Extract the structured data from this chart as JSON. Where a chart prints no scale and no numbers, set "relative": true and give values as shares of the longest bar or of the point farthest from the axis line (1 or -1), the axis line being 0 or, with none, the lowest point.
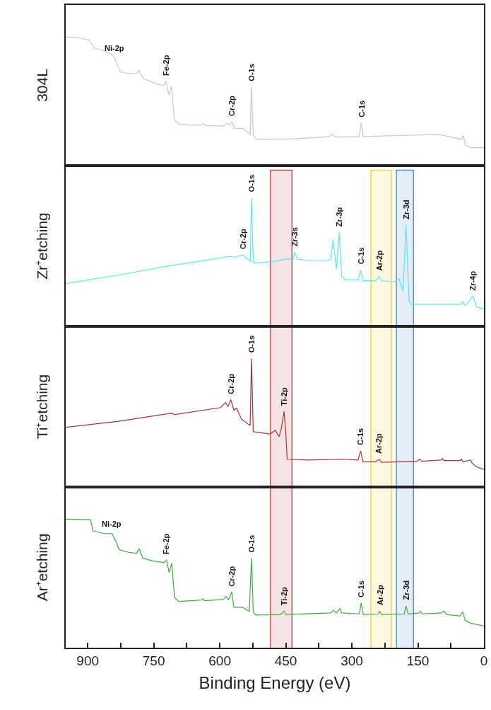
{
  "chart_data": [
    {
      "type": "line",
      "relative": true,
      "ylabel": "304L",
      "xlim": [
        950,
        0
      ],
      "tick_labels": false,
      "series": [
        {
          "color": "#c8c8c8",
          "x": [
            950,
            925,
            897,
            885,
            863,
            848,
            839,
            826,
            808,
            789,
            783,
            774,
            758,
            743,
            727,
            722,
            716,
            710,
            703,
            693,
            666,
            641,
            638,
            632,
            592,
            582,
            578,
            573,
            567,
            548,
            536,
            531,
            528,
            524,
            518,
            431,
            351,
            345,
            338,
            283,
            279,
            274,
            104,
            79,
            51,
            47,
            42,
            30,
            0
          ],
          "values": [
            1.0,
            0.996,
            0.978,
            0.914,
            0.892,
            0.871,
            0.839,
            0.731,
            0.716,
            0.72,
            0.738,
            0.677,
            0.656,
            0.634,
            0.624,
            0.656,
            0.548,
            0.617,
            0.355,
            0.323,
            0.316,
            0.316,
            0.329,
            0.312,
            0.308,
            0.333,
            0.312,
            0.344,
            0.29,
            0.29,
            0.258,
            0.237,
            0.613,
            0.247,
            0.204,
            0.209,
            0.226,
            0.247,
            0.222,
            0.226,
            0.333,
            0.226,
            0.243,
            0.226,
            0.204,
            0.237,
            0.161,
            0.14,
            0.14
          ]
        }
      ],
      "annotations": [
        {
          "text": "Ni-2p",
          "x": 839,
          "y": 0.839
        },
        {
          "text": "Fe-2p",
          "x": 722,
          "y": 0.656
        },
        {
          "text": "Cr-2p",
          "x": 573,
          "y": 0.344
        },
        {
          "text": "O-1s",
          "x": 528,
          "y": 0.613
        },
        {
          "text": "C-1s",
          "x": 279,
          "y": 0.333
        }
      ]
    },
    {
      "type": "line",
      "relative": true,
      "ylabel": "Zr⁺etching",
      "xlim": [
        950,
        0
      ],
      "tick_labels": false,
      "series": [
        {
          "color": "#5ee6ea",
          "x": [
            950,
            833,
            709,
            616,
            576,
            567,
            548,
            536,
            531,
            528,
            524,
            511,
            474,
            444,
            434,
            430,
            424,
            400,
            354,
            348,
            343,
            335,
            329,
            323,
            314,
            286,
            280,
            275,
            246,
            238,
            233,
            203,
            193,
            184,
            177,
            170,
            166,
            54,
            48,
            42,
            25,
            17,
            0
          ],
          "values": [
            0.332,
            0.398,
            0.474,
            0.522,
            0.545,
            0.537,
            0.556,
            0.522,
            0.503,
            1.0,
            0.493,
            0.493,
            0.507,
            0.526,
            0.522,
            0.575,
            0.522,
            0.512,
            0.512,
            0.522,
            0.674,
            0.446,
            0.731,
            0.389,
            0.361,
            0.361,
            0.436,
            0.355,
            0.355,
            0.389,
            0.355,
            0.347,
            0.37,
            0.275,
            0.787,
            0.199,
            0.171,
            0.171,
            0.19,
            0.161,
            0.237,
            0.152,
            0.133
          ]
        }
      ],
      "bands": [
        {
          "axis": "x",
          "from": 484,
          "to": 437,
          "color": "#b01c22"
        },
        {
          "axis": "x",
          "from": 256,
          "to": 211,
          "color": "#f2c318"
        },
        {
          "axis": "x",
          "from": 198,
          "to": 161,
          "color": "#1f70c1"
        }
      ],
      "annotations": [
        {
          "text": "Cr-2p",
          "x": 548,
          "y": 0.556
        },
        {
          "text": "O-1s",
          "x": 528,
          "y": 1.0
        },
        {
          "text": "Zr-3s",
          "x": 430,
          "y": 0.575
        },
        {
          "text": "Zr-3p",
          "x": 329,
          "y": 0.731
        },
        {
          "text": "C-1s",
          "x": 280,
          "y": 0.436
        },
        {
          "text": "Ar-2p",
          "x": 238,
          "y": 0.389
        },
        {
          "text": "Zr-3d",
          "x": 177,
          "y": 0.787
        },
        {
          "text": "Zr-4p",
          "x": 25,
          "y": 0.237
        }
      ]
    },
    {
      "type": "line",
      "relative": true,
      "ylabel": "Ti⁺etching",
      "xlim": [
        950,
        0
      ],
      "tick_labels": false,
      "series": [
        {
          "color": "#9e3636",
          "x": [
            950,
            833,
            709,
            703,
            598,
            587,
            581,
            575,
            568,
            562,
            551,
            536,
            531,
            528,
            524,
            511,
            486,
            474,
            465,
            460,
            454,
            450,
            447,
            400,
            320,
            286,
            280,
            275,
            246,
            238,
            233,
            153,
            146,
            141,
            98,
            94,
            91,
            54,
            51,
            48,
            30,
            27,
            17,
            0
          ],
          "values": [
            0.465,
            0.51,
            0.575,
            0.563,
            0.618,
            0.657,
            0.627,
            0.68,
            0.598,
            0.614,
            0.529,
            0.49,
            0.48,
            1.0,
            0.431,
            0.425,
            0.412,
            0.441,
            0.392,
            0.461,
            0.588,
            0.422,
            0.216,
            0.21,
            0.216,
            0.21,
            0.28,
            0.196,
            0.196,
            0.216,
            0.192,
            0.2,
            0.216,
            0.2,
            0.21,
            0.222,
            0.206,
            0.206,
            0.22,
            0.196,
            0.21,
            0.186,
            0.157,
            0.137
          ]
        }
      ],
      "bands": [
        {
          "axis": "x",
          "from": 484,
          "to": 437,
          "color": "#b01c22"
        },
        {
          "axis": "x",
          "from": 256,
          "to": 211,
          "color": "#f2c318"
        },
        {
          "axis": "x",
          "from": 198,
          "to": 161,
          "color": "#1f70c1"
        }
      ],
      "annotations": [
        {
          "text": "Cr-2p",
          "x": 575,
          "y": 0.68
        },
        {
          "text": "O-1s",
          "x": 528,
          "y": 1.0
        },
        {
          "text": "Ti-2p",
          "x": 454,
          "y": 0.588
        },
        {
          "text": "C-1s",
          "x": 280,
          "y": 0.28
        },
        {
          "text": "Ar-2p",
          "x": 238,
          "y": 0.216
        }
      ]
    },
    {
      "type": "line",
      "relative": true,
      "ylabel": "Ar⁺etching",
      "xlabel": "Binding Energy (eV)",
      "xlim": [
        950,
        0
      ],
      "tick_labels": "x",
      "xticks": [
        900,
        {
          "value": 825,
          "label": null
        },
        750,
        {
          "value": 675,
          "label": null
        },
        600,
        {
          "value": 525,
          "label": null
        },
        450,
        {
          "value": 375,
          "label": null
        },
        300,
        {
          "value": 225,
          "label": null
        },
        150,
        {
          "value": 75,
          "label": null
        },
        0
      ],
      "series": [
        {
          "color": "#45a845",
          "x": [
            950,
            894,
            888,
            863,
            845,
            835,
            829,
            808,
            789,
            783,
            775,
            751,
            727,
            721,
            715,
            709,
            703,
            693,
            641,
            638,
            635,
            592,
            586,
            580,
            573,
            568,
            548,
            533,
            528,
            524,
            519,
            462,
            454,
            450,
            348,
            342,
            335,
            327,
            323,
            283,
            279,
            274,
            240,
            237,
            233,
            181,
            177,
            172,
            147,
            144,
            141,
            98,
            91,
            85,
            54,
            48,
            43,
            30,
            0
          ],
          "values": [
            1.0,
            0.996,
            0.91,
            0.888,
            0.888,
            0.82,
            0.764,
            0.742,
            0.735,
            0.771,
            0.697,
            0.674,
            0.663,
            0.681,
            0.584,
            0.658,
            0.393,
            0.36,
            0.371,
            0.382,
            0.366,
            0.375,
            0.398,
            0.371,
            0.434,
            0.315,
            0.315,
            0.281,
            0.697,
            0.281,
            0.254,
            0.258,
            0.285,
            0.258,
            0.27,
            0.292,
            0.27,
            0.303,
            0.27,
            0.263,
            0.348,
            0.258,
            0.263,
            0.285,
            0.258,
            0.263,
            0.326,
            0.263,
            0.27,
            0.285,
            0.263,
            0.27,
            0.285,
            0.258,
            0.247,
            0.281,
            0.213,
            0.191,
            0.169
          ]
        }
      ],
      "bands": [
        {
          "axis": "x",
          "from": 484,
          "to": 437,
          "color": "#b01c22"
        },
        {
          "axis": "x",
          "from": 256,
          "to": 211,
          "color": "#f2c318"
        },
        {
          "axis": "x",
          "from": 198,
          "to": 161,
          "color": "#1f70c1"
        }
      ],
      "annotations": [
        {
          "text": "Ni-2p",
          "x": 845,
          "y": 0.888
        },
        {
          "text": "Fe-2p",
          "x": 721,
          "y": 0.681
        },
        {
          "text": "Cr-2p",
          "x": 573,
          "y": 0.434
        },
        {
          "text": "O-1s",
          "x": 528,
          "y": 0.697
        },
        {
          "text": "Ti-2p",
          "x": 454,
          "y": 0.285
        },
        {
          "text": "C-1s",
          "x": 279,
          "y": 0.348
        },
        {
          "text": "Ar-2p",
          "x": 237,
          "y": 0.285
        },
        {
          "text": "Zr-3d",
          "x": 177,
          "y": 0.326
        }
      ]
    }
  ]
}
